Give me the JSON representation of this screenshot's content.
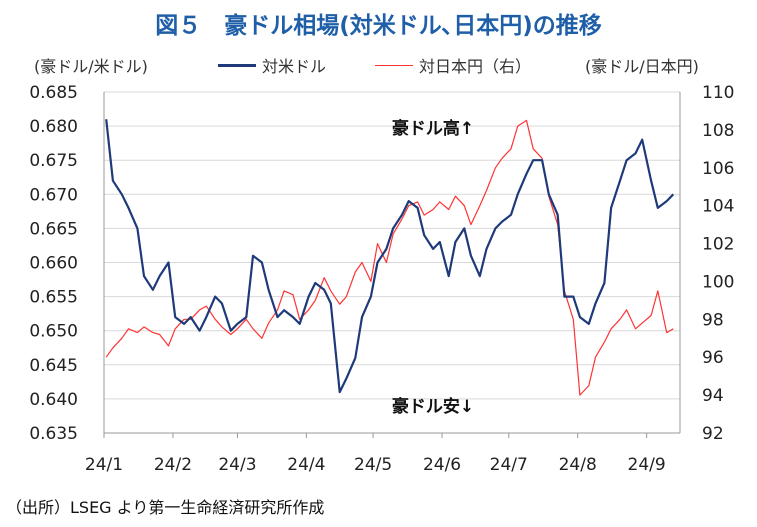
{
  "title": "図５　豪ドル相場(対米ドル､日本円)の推移",
  "units": {
    "left": "(豪ドル/米ドル)",
    "right": "(豪ドル/日本円)"
  },
  "annotations": {
    "up": "豪ドル高↑",
    "down": "豪ドル安↓"
  },
  "source_note": "（出所）LSEG より第一生命経済研究所作成",
  "colors": {
    "usd": "#1f3a7a",
    "jpy": "#ff3333",
    "title": "#1f5fa8",
    "grid": "#d9d9d9"
  },
  "chart_data": {
    "type": "line",
    "xticks": [
      "24/1",
      "24/2",
      "24/3",
      "24/4",
      "24/5",
      "24/6",
      "24/7",
      "24/8",
      "24/9"
    ],
    "y_left": {
      "range": [
        0.635,
        0.685
      ],
      "ticks": [
        "0.685",
        "0.680",
        "0.675",
        "0.670",
        "0.665",
        "0.660",
        "0.655",
        "0.650",
        "0.645",
        "0.640",
        "0.635"
      ]
    },
    "y_right": {
      "range": [
        92,
        110
      ],
      "ticks": [
        "110",
        "108",
        "106",
        "104",
        "102",
        "100",
        "98",
        "96",
        "94",
        "92"
      ]
    },
    "grid": "horizontal",
    "series": [
      {
        "name": "対米ドル",
        "axis": "left",
        "x": [
          "2024-01-02",
          "2024-01-05",
          "2024-01-09",
          "2024-01-12",
          "2024-01-16",
          "2024-01-19",
          "2024-01-23",
          "2024-01-26",
          "2024-01-30",
          "2024-02-02",
          "2024-02-06",
          "2024-02-09",
          "2024-02-13",
          "2024-02-16",
          "2024-02-20",
          "2024-02-23",
          "2024-02-27",
          "2024-03-01",
          "2024-03-05",
          "2024-03-08",
          "2024-03-12",
          "2024-03-15",
          "2024-03-19",
          "2024-03-22",
          "2024-03-26",
          "2024-03-29",
          "2024-04-02",
          "2024-04-05",
          "2024-04-09",
          "2024-04-12",
          "2024-04-16",
          "2024-04-19",
          "2024-04-23",
          "2024-04-26",
          "2024-04-30",
          "2024-05-03",
          "2024-05-07",
          "2024-05-10",
          "2024-05-14",
          "2024-05-17",
          "2024-05-21",
          "2024-05-24",
          "2024-05-28",
          "2024-05-31",
          "2024-06-04",
          "2024-06-07",
          "2024-06-11",
          "2024-06-14",
          "2024-06-18",
          "2024-06-21",
          "2024-06-25",
          "2024-06-28",
          "2024-07-02",
          "2024-07-05",
          "2024-07-09",
          "2024-07-12",
          "2024-07-16",
          "2024-07-19",
          "2024-07-23",
          "2024-07-26",
          "2024-07-30",
          "2024-08-02",
          "2024-08-06",
          "2024-08-09",
          "2024-08-13",
          "2024-08-16",
          "2024-08-20",
          "2024-08-23",
          "2024-08-27",
          "2024-08-30",
          "2024-09-03",
          "2024-09-06",
          "2024-09-10",
          "2024-09-13"
        ],
        "y": [
          0.681,
          0.672,
          0.67,
          0.668,
          0.665,
          0.658,
          0.656,
          0.658,
          0.66,
          0.652,
          0.651,
          0.652,
          0.65,
          0.652,
          0.655,
          0.654,
          0.65,
          0.651,
          0.652,
          0.661,
          0.66,
          0.656,
          0.652,
          0.653,
          0.652,
          0.651,
          0.655,
          0.657,
          0.656,
          0.654,
          0.641,
          0.643,
          0.646,
          0.652,
          0.655,
          0.66,
          0.662,
          0.665,
          0.667,
          0.669,
          0.668,
          0.664,
          0.662,
          0.663,
          0.658,
          0.663,
          0.665,
          0.661,
          0.658,
          0.662,
          0.665,
          0.666,
          0.667,
          0.67,
          0.673,
          0.675,
          0.675,
          0.67,
          0.667,
          0.655,
          0.655,
          0.652,
          0.651,
          0.654,
          0.657,
          0.668,
          0.672,
          0.675,
          0.676,
          0.678,
          0.672,
          0.668,
          0.669,
          0.67
        ]
      },
      {
        "name": "対日本円（右）",
        "axis": "right",
        "x": [
          "2024-01-02",
          "2024-01-05",
          "2024-01-09",
          "2024-01-12",
          "2024-01-16",
          "2024-01-19",
          "2024-01-23",
          "2024-01-26",
          "2024-01-30",
          "2024-02-02",
          "2024-02-06",
          "2024-02-09",
          "2024-02-13",
          "2024-02-16",
          "2024-02-20",
          "2024-02-23",
          "2024-02-27",
          "2024-03-01",
          "2024-03-05",
          "2024-03-08",
          "2024-03-12",
          "2024-03-15",
          "2024-03-19",
          "2024-03-22",
          "2024-03-26",
          "2024-03-29",
          "2024-04-02",
          "2024-04-05",
          "2024-04-09",
          "2024-04-12",
          "2024-04-16",
          "2024-04-19",
          "2024-04-23",
          "2024-04-26",
          "2024-04-30",
          "2024-05-03",
          "2024-05-07",
          "2024-05-10",
          "2024-05-14",
          "2024-05-17",
          "2024-05-21",
          "2024-05-24",
          "2024-05-28",
          "2024-05-31",
          "2024-06-04",
          "2024-06-07",
          "2024-06-11",
          "2024-06-14",
          "2024-06-18",
          "2024-06-21",
          "2024-06-25",
          "2024-06-28",
          "2024-07-02",
          "2024-07-05",
          "2024-07-09",
          "2024-07-12",
          "2024-07-16",
          "2024-07-19",
          "2024-07-23",
          "2024-07-26",
          "2024-07-30",
          "2024-08-02",
          "2024-08-06",
          "2024-08-09",
          "2024-08-13",
          "2024-08-16",
          "2024-08-20",
          "2024-08-23",
          "2024-08-27",
          "2024-08-30",
          "2024-09-03",
          "2024-09-06",
          "2024-09-10",
          "2024-09-13"
        ],
        "y": [
          96.0,
          96.5,
          97.0,
          97.5,
          97.3,
          97.6,
          97.3,
          97.2,
          96.6,
          97.5,
          98.0,
          98.0,
          98.5,
          98.7,
          98.0,
          97.6,
          97.2,
          97.5,
          98.0,
          97.5,
          97.0,
          97.8,
          98.5,
          99.5,
          99.3,
          98.0,
          98.5,
          99.0,
          100.2,
          99.5,
          98.8,
          99.2,
          100.5,
          101.0,
          100.0,
          102.0,
          101.0,
          102.5,
          103.3,
          104.0,
          104.2,
          103.5,
          103.8,
          104.2,
          103.8,
          104.5,
          104.0,
          103.0,
          104.0,
          104.8,
          106.0,
          106.5,
          107.0,
          108.2,
          108.5,
          107.0,
          106.5,
          104.5,
          103.0,
          99.5,
          98.0,
          94.0,
          94.5,
          96.0,
          96.8,
          97.5,
          98.0,
          98.5,
          97.5,
          97.8,
          98.2,
          99.5,
          97.3,
          97.5
        ]
      }
    ]
  }
}
